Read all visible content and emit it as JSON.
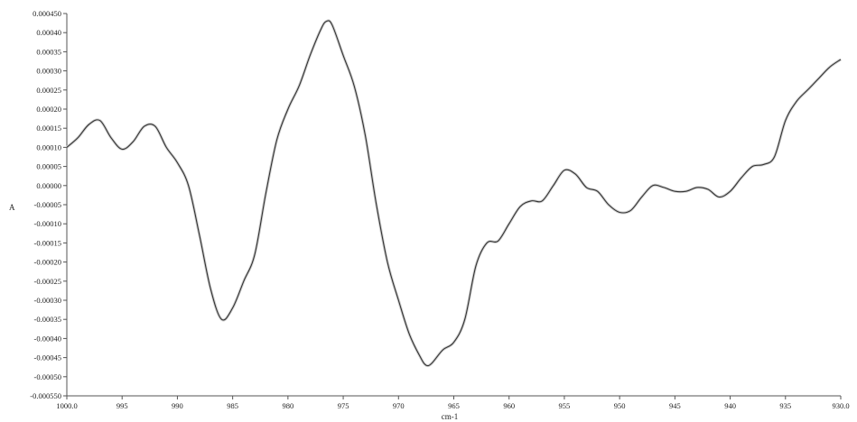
{
  "chart_data": {
    "type": "line",
    "title": "",
    "xlabel": "cm-1",
    "ylabel": "A",
    "xlim": [
      1000.0,
      930.0
    ],
    "ylim": [
      -0.00055,
      0.00045
    ],
    "x_reversed": true,
    "grid": false,
    "legend": "none",
    "x_ticks": [
      {
        "value": 1000.0,
        "label": "1000.0"
      },
      {
        "value": 995,
        "label": "995"
      },
      {
        "value": 990,
        "label": "990"
      },
      {
        "value": 985,
        "label": "985"
      },
      {
        "value": 980,
        "label": "980"
      },
      {
        "value": 975,
        "label": "975"
      },
      {
        "value": 970,
        "label": "970"
      },
      {
        "value": 965,
        "label": "965"
      },
      {
        "value": 960,
        "label": "960"
      },
      {
        "value": 955,
        "label": "955"
      },
      {
        "value": 950,
        "label": "950"
      },
      {
        "value": 945,
        "label": "945"
      },
      {
        "value": 940,
        "label": "940"
      },
      {
        "value": 935,
        "label": "935"
      },
      {
        "value": 930.0,
        "label": "930.0"
      }
    ],
    "y_ticks": [
      {
        "value": 0.00045,
        "label": "0.000450"
      },
      {
        "value": 0.0004,
        "label": "0.00040"
      },
      {
        "value": 0.00035,
        "label": "0.00035"
      },
      {
        "value": 0.0003,
        "label": "0.00030"
      },
      {
        "value": 0.00025,
        "label": "0.00025"
      },
      {
        "value": 0.0002,
        "label": "0.00020"
      },
      {
        "value": 0.00015,
        "label": "0.00015"
      },
      {
        "value": 0.0001,
        "label": "0.00010"
      },
      {
        "value": 5e-05,
        "label": "0.00005"
      },
      {
        "value": 0.0,
        "label": "0.00000"
      },
      {
        "value": -5e-05,
        "label": "-0.00005"
      },
      {
        "value": -0.0001,
        "label": "-0.00010"
      },
      {
        "value": -0.00015,
        "label": "-0.00015"
      },
      {
        "value": -0.0002,
        "label": "-0.00020"
      },
      {
        "value": -0.00025,
        "label": "-0.00025"
      },
      {
        "value": -0.0003,
        "label": "-0.00030"
      },
      {
        "value": -0.00035,
        "label": "-0.00035"
      },
      {
        "value": -0.0004,
        "label": "-0.00040"
      },
      {
        "value": -0.00045,
        "label": "-0.00045"
      },
      {
        "value": -0.0005,
        "label": "-0.00050"
      },
      {
        "value": -0.00055,
        "label": "-0.000550"
      }
    ],
    "series": [
      {
        "color": "#333333",
        "points": [
          [
            1000.0,
            0.0001
          ],
          [
            999.0,
            0.000125
          ],
          [
            998.0,
            0.00016
          ],
          [
            997.0,
            0.00017
          ],
          [
            996.0,
            0.000125
          ],
          [
            995.0,
            9.5e-05
          ],
          [
            994.0,
            0.000115
          ],
          [
            993.0,
            0.000155
          ],
          [
            992.0,
            0.000155
          ],
          [
            991.0,
            0.0001
          ],
          [
            990.0,
            6e-05
          ],
          [
            989.0,
            0.0
          ],
          [
            988.0,
            -0.00013
          ],
          [
            987.0,
            -0.00027
          ],
          [
            986.0,
            -0.00035
          ],
          [
            985.0,
            -0.00032
          ],
          [
            984.0,
            -0.00025
          ],
          [
            983.0,
            -0.00018
          ],
          [
            982.0,
            -2e-05
          ],
          [
            981.0,
            0.00012
          ],
          [
            980.0,
            0.0002
          ],
          [
            979.0,
            0.00026
          ],
          [
            978.0,
            0.00034
          ],
          [
            977.0,
            0.00041
          ],
          [
            976.5,
            0.00043
          ],
          [
            976.0,
            0.00042
          ],
          [
            975.0,
            0.00034
          ],
          [
            974.0,
            0.00026
          ],
          [
            973.0,
            0.00013
          ],
          [
            972.0,
            -5e-05
          ],
          [
            971.0,
            -0.0002
          ],
          [
            970.0,
            -0.0003
          ],
          [
            969.0,
            -0.00039
          ],
          [
            968.0,
            -0.00045
          ],
          [
            967.5,
            -0.00047
          ],
          [
            967.0,
            -0.000465
          ],
          [
            966.0,
            -0.00043
          ],
          [
            965.0,
            -0.00041
          ],
          [
            964.0,
            -0.00035
          ],
          [
            963.0,
            -0.00021
          ],
          [
            962.0,
            -0.00015
          ],
          [
            961.0,
            -0.000145
          ],
          [
            960.0,
            -0.0001
          ],
          [
            959.0,
            -5.5e-05
          ],
          [
            958.0,
            -4e-05
          ],
          [
            957.0,
            -4e-05
          ],
          [
            956.0,
            0.0
          ],
          [
            955.0,
            4e-05
          ],
          [
            954.0,
            3e-05
          ],
          [
            953.0,
            -5e-06
          ],
          [
            952.0,
            -1.5e-05
          ],
          [
            951.0,
            -5e-05
          ],
          [
            950.0,
            -7e-05
          ],
          [
            949.0,
            -6.5e-05
          ],
          [
            948.0,
            -3e-05
          ],
          [
            947.0,
            0.0
          ],
          [
            946.0,
            -5e-06
          ],
          [
            945.0,
            -1.5e-05
          ],
          [
            944.0,
            -1.5e-05
          ],
          [
            943.0,
            -5e-06
          ],
          [
            942.0,
            -1e-05
          ],
          [
            941.0,
            -3e-05
          ],
          [
            940.0,
            -1.5e-05
          ],
          [
            939.0,
            2e-05
          ],
          [
            938.0,
            5e-05
          ],
          [
            937.0,
            5.5e-05
          ],
          [
            936.0,
            7.5e-05
          ],
          [
            935.0,
            0.00017
          ],
          [
            934.0,
            0.00022
          ],
          [
            933.0,
            0.00025
          ],
          [
            932.0,
            0.00028
          ],
          [
            931.0,
            0.00031
          ],
          [
            930.0,
            0.00033
          ]
        ]
      }
    ]
  }
}
